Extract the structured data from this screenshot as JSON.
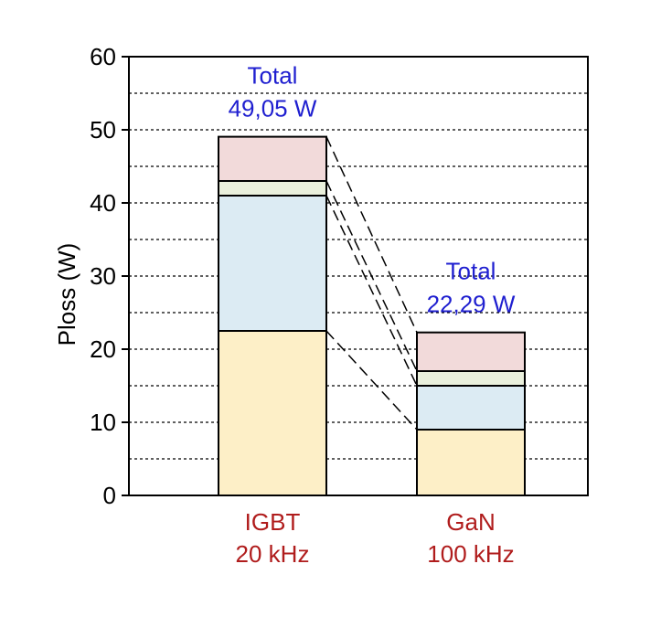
{
  "chart_data": {
    "type": "bar",
    "stacked": true,
    "ylabel": "Ploss (W)",
    "ylim": [
      0,
      60
    ],
    "yticks": [
      0,
      10,
      20,
      30,
      40,
      50,
      60
    ],
    "grid": "dashed horizontal lines every 5",
    "categories": [
      {
        "line1": "IGBT",
        "line2": "20 kHz"
      },
      {
        "line1": "GaN",
        "line2": "100 kHz"
      }
    ],
    "series": [
      {
        "values": [
          22.5,
          9.0
        ],
        "color": "#fdefc7"
      },
      {
        "values": [
          18.5,
          6.0
        ],
        "color": "#dcebf3"
      },
      {
        "values": [
          2.0,
          2.0
        ],
        "color": "#eaf0dc"
      },
      {
        "values": [
          6.05,
          5.29
        ],
        "color": "#f2dada"
      }
    ],
    "annotations": [
      {
        "line1": "Total",
        "line2": "49,05 W"
      },
      {
        "line1": "Total",
        "line2": "22,29 W"
      }
    ],
    "colors": {
      "category_label": "#b01c1c",
      "total_label": "#1f1fd0",
      "axis": "#000000"
    }
  }
}
